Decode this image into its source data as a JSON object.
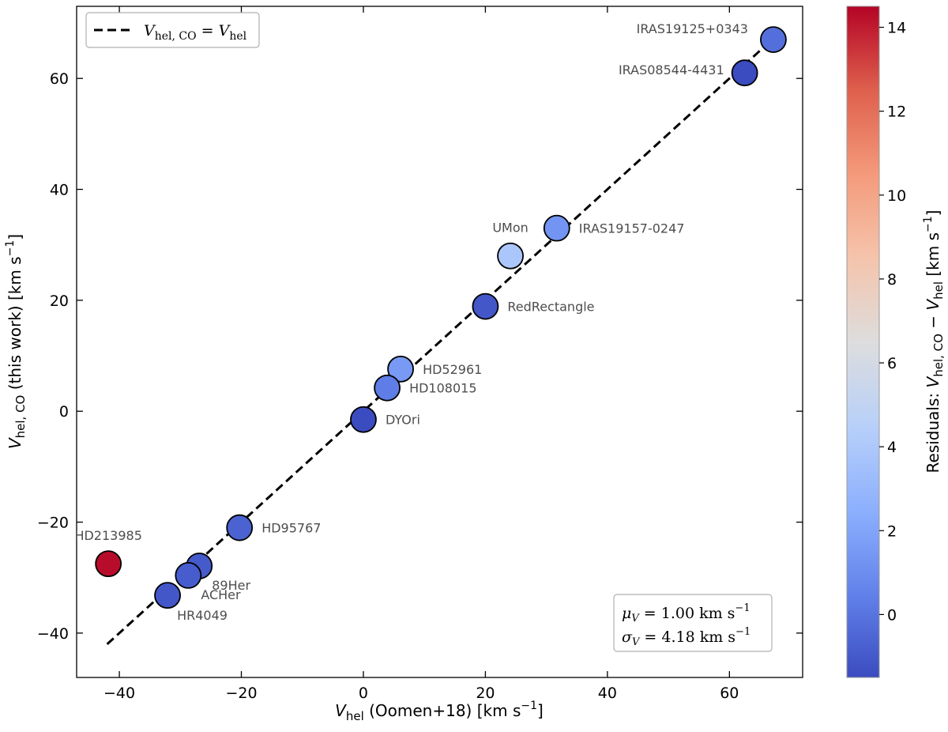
{
  "chart_data": {
    "type": "scatter",
    "xlabel": {
      "main": "V",
      "sub": "hel",
      "rest": " (Oomen+18) [km s",
      "sup": "−1",
      "end": "]"
    },
    "ylabel": {
      "main": "V",
      "sub": "hel, CO",
      "rest": " (this work) [km s",
      "sup": "−1",
      "end": "]"
    },
    "xlim": [
      -47,
      72
    ],
    "ylim": [
      -48,
      73
    ],
    "xticks": [
      -40,
      -20,
      0,
      20,
      40,
      60
    ],
    "yticks": [
      -40,
      -20,
      0,
      20,
      40,
      60
    ],
    "xtick_labels": [
      "−40",
      "−20",
      "0",
      "20",
      "40",
      "60"
    ],
    "ytick_labels": [
      "−40",
      "−20",
      "0",
      "20",
      "40",
      "60"
    ],
    "legend": {
      "position": "top-left",
      "line_style": "dashed",
      "lhs": "V",
      "lhs_sub": "hel, CO",
      "eq": " = ",
      "rhs": "V",
      "rhs_sub": "hel"
    },
    "reference_line": {
      "x": [
        -42,
        67.5
      ],
      "y": [
        -42,
        67.5
      ]
    },
    "stats_box": {
      "position": "bottom-right",
      "mu_sym": "μ",
      "mu_sub": "V",
      "mu_text": " = 1.00 km s",
      "mu_sup": "−1",
      "sigma_sym": "σ",
      "sigma_sub": "V",
      "sigma_text": " = 4.18 km s",
      "sigma_sup": "−1"
    },
    "colorbar": {
      "label": {
        "pre": "Residuals: ",
        "a": "V",
        "a_sub": "hel, CO",
        "mid": " − ",
        "b": "V",
        "b_sub": "hel",
        "end": " [km s",
        "sup": "−1",
        "end2": "]"
      },
      "min": -1.5,
      "max": 14.5,
      "ticks": [
        0,
        2,
        4,
        6,
        8,
        10,
        12,
        14
      ],
      "tick_labels": [
        "0",
        "2",
        "4",
        "6",
        "8",
        "10",
        "12",
        "14"
      ],
      "stops": [
        "#3b4cc0",
        "#6282ea",
        "#8db0fe",
        "#b8d0f9",
        "#dddddd",
        "#f5c4ac",
        "#f49a7b",
        "#de604d",
        "#b40426"
      ]
    },
    "points": [
      {
        "name": "IRAS19125+0343",
        "x": 67.2,
        "y": 67.0,
        "residual": -0.2,
        "label_pos": "upper-left"
      },
      {
        "name": "IRAS08544-4431",
        "x": 62.5,
        "y": 61.0,
        "residual": -1.5,
        "label_pos": "left"
      },
      {
        "name": "IRAS19157-0247",
        "x": 31.7,
        "y": 33.0,
        "residual": 1.3,
        "label_pos": "right"
      },
      {
        "name": "UMon",
        "x": 24.1,
        "y": 28.0,
        "residual": 3.9,
        "label_pos": "above"
      },
      {
        "name": "RedRectangle",
        "x": 20.0,
        "y": 18.9,
        "residual": -1.1,
        "label_pos": "right"
      },
      {
        "name": "HD52961",
        "x": 6.1,
        "y": 7.6,
        "residual": 1.5,
        "label_pos": "right"
      },
      {
        "name": "HD108015",
        "x": 3.9,
        "y": 4.2,
        "residual": 0.3,
        "label_pos": "right"
      },
      {
        "name": "DYOri",
        "x": 0.0,
        "y": -1.5,
        "residual": -1.5,
        "label_pos": "right"
      },
      {
        "name": "HD95767",
        "x": -20.3,
        "y": -21.0,
        "residual": -0.7,
        "label_pos": "right"
      },
      {
        "name": "HD213985",
        "x": -41.8,
        "y": -27.5,
        "residual": 14.3,
        "label_pos": "above"
      },
      {
        "name": "89Her",
        "x": -26.9,
        "y": -27.9,
        "residual": -1.0,
        "label_pos": "lower-right"
      },
      {
        "name": "ACHer",
        "x": -28.7,
        "y": -29.6,
        "residual": -0.9,
        "label_pos": "lower-right"
      },
      {
        "name": "HR4049",
        "x": -32.1,
        "y": -33.2,
        "residual": -1.1,
        "label_pos": "below"
      }
    ]
  }
}
